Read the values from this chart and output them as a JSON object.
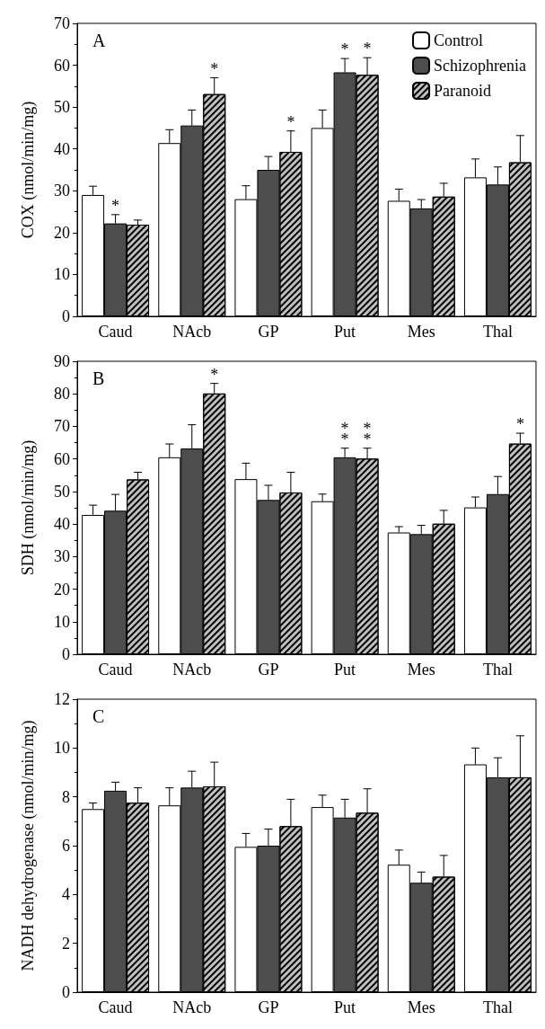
{
  "chart_data": [
    {
      "type": "bar",
      "title": "A",
      "ylabel": "COX (nmol/min/mg)",
      "categories": [
        "Caud",
        "NAcb",
        "GP",
        "Put",
        "Mes",
        "Thal"
      ],
      "ylim": [
        0,
        70
      ],
      "yticks": [
        0,
        10,
        20,
        30,
        40,
        50,
        60,
        70
      ],
      "legend": "top right",
      "grid": false,
      "series": [
        {
          "name": "Control",
          "color": "#ffffff",
          "values": [
            29,
            41.4,
            28,
            45,
            27.6,
            33.2
          ],
          "errors": [
            [
              29,
              31.1
            ],
            [
              41.4,
              44.6
            ],
            [
              28,
              31.2
            ],
            [
              45,
              49.3
            ],
            [
              27.6,
              30.4
            ],
            [
              33.2,
              37.6
            ]
          ]
        },
        {
          "name": "Schizophrenia",
          "color": "#4d4d4d",
          "values": [
            22.2,
            45.6,
            35,
            58.3,
            25.8,
            31.5
          ],
          "errors": [
            [
              22.2,
              24.3
            ],
            [
              45.6,
              49.3
            ],
            [
              35,
              38.2
            ],
            [
              58.3,
              61.6
            ],
            [
              25.8,
              27.9
            ],
            [
              31.5,
              35.7
            ]
          ],
          "value_labels": [
            "*",
            null,
            null,
            "*",
            null,
            null
          ]
        },
        {
          "name": "Paranoid",
          "color": "#bfbfbf",
          "values": [
            21.9,
            53.1,
            39.3,
            57.7,
            28.6,
            36.8
          ],
          "errors": [
            [
              21.9,
              23
            ],
            [
              53.1,
              57
            ],
            [
              39.3,
              44.3
            ],
            [
              57.7,
              61.8
            ],
            [
              28.6,
              31.8
            ],
            [
              36.8,
              43.2
            ]
          ],
          "value_labels": [
            null,
            "*",
            "*",
            "*",
            null,
            null
          ]
        }
      ]
    },
    {
      "type": "bar",
      "title": "B",
      "ylabel": "SDH (nmol/min/mg)",
      "categories": [
        "Caud",
        "NAcb",
        "GP",
        "Put",
        "Mes",
        "Thal"
      ],
      "ylim": [
        0,
        90
      ],
      "yticks": [
        0,
        10,
        20,
        30,
        40,
        50,
        60,
        70,
        80,
        90
      ],
      "grid": false,
      "series": [
        {
          "color": "#ffffff",
          "values": [
            42.8,
            60.5,
            53.8,
            47,
            37.4,
            45.1
          ],
          "errors": [
            [
              42.8,
              45.8
            ],
            [
              60.5,
              64.6
            ],
            [
              53.8,
              58.7
            ],
            [
              47,
              49.2
            ],
            [
              37.4,
              39.2
            ],
            [
              45.1,
              48.3
            ]
          ]
        },
        {
          "color": "#4d4d4d",
          "values": [
            44.1,
            63.2,
            47.4,
            60.5,
            36.9,
            49.2
          ],
          "errors": [
            [
              44.1,
              49.1
            ],
            [
              63.2,
              70.5
            ],
            [
              47.4,
              51.9
            ],
            [
              60.5,
              63.3
            ],
            [
              36.9,
              39.6
            ],
            [
              49.2,
              54.6
            ]
          ],
          "value_labels": [
            null,
            null,
            null,
            "*\n*",
            null,
            null
          ]
        },
        {
          "color": "#bfbfbf",
          "values": [
            53.7,
            80.1,
            49.7,
            60.1,
            40.1,
            64.7
          ],
          "errors": [
            [
              53.7,
              55.9
            ],
            [
              80.1,
              83.2
            ],
            [
              49.7,
              55.9
            ],
            [
              60.1,
              63.3
            ],
            [
              40.1,
              44.2
            ],
            [
              64.7,
              67.9
            ]
          ],
          "value_labels": [
            null,
            "*",
            null,
            "*\n*",
            null,
            "*"
          ]
        }
      ]
    },
    {
      "type": "bar",
      "title": "C",
      "ylabel": "NADH dehydrogenase (nmol/min/mg)",
      "categories": [
        "Caud",
        "NAcb",
        "GP",
        "Put",
        "Mes",
        "Thal"
      ],
      "ylim": [
        0,
        12
      ],
      "yticks": [
        0,
        2,
        4,
        6,
        8,
        10,
        12
      ],
      "grid": false,
      "series": [
        {
          "color": "#ffffff",
          "values": [
            7.5,
            7.65,
            5.95,
            7.58,
            5.22,
            9.33
          ],
          "errors": [
            [
              7.5,
              7.75
            ],
            [
              7.65,
              8.37
            ],
            [
              5.95,
              6.5
            ],
            [
              7.58,
              8.07
            ],
            [
              5.22,
              5.82
            ],
            [
              9.33,
              10
            ]
          ]
        },
        {
          "color": "#4d4d4d",
          "values": [
            8.25,
            8.38,
            6,
            7.15,
            4.48,
            8.8
          ],
          "errors": [
            [
              8.25,
              8.6
            ],
            [
              8.38,
              9.05
            ],
            [
              6,
              6.68
            ],
            [
              7.15,
              7.9
            ],
            [
              4.48,
              4.92
            ],
            [
              8.8,
              9.6
            ]
          ]
        },
        {
          "color": "#bfbfbf",
          "values": [
            7.76,
            8.43,
            6.8,
            7.35,
            4.73,
            8.8
          ],
          "errors": [
            [
              7.76,
              8.37
            ],
            [
              8.43,
              9.42
            ],
            [
              6.8,
              7.9
            ],
            [
              7.35,
              8.33
            ],
            [
              4.73,
              5.6
            ],
            [
              8.8,
              10.5
            ]
          ]
        }
      ]
    }
  ]
}
